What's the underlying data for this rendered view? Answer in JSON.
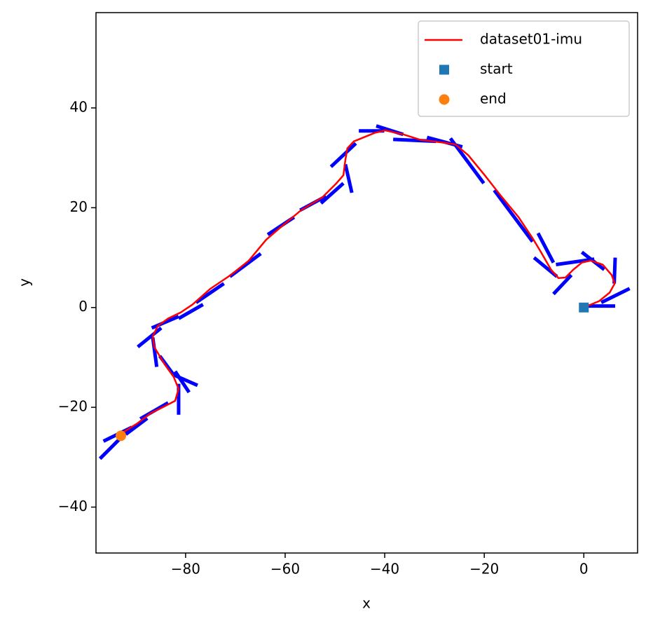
{
  "chart_data": {
    "type": "line",
    "xlabel": "x",
    "ylabel": "y",
    "xlim": [
      -98.0,
      10.8
    ],
    "ylim": [
      -49.2,
      59.1
    ],
    "xticks": [
      {
        "value": -80,
        "label": "−80"
      },
      {
        "value": -60,
        "label": "−60"
      },
      {
        "value": -40,
        "label": "−40"
      },
      {
        "value": -20,
        "label": "−20"
      },
      0
    ],
    "yticks": [
      {
        "value": -40,
        "label": "−40"
      },
      {
        "value": -20,
        "label": "−20"
      },
      0,
      20,
      40
    ],
    "legend": "upper right",
    "series": [
      {
        "name": "dataset01-imu",
        "kind": "line",
        "color": "#ff0000",
        "x": [
          0,
          3.1,
          5.2,
          6.2,
          5.6,
          3.8,
          1.4,
          -0.4,
          -2.1,
          -3.7,
          -5.1,
          -6.6,
          -8.6,
          -10.3,
          -13.1,
          -16.6,
          -19.9,
          -23.2,
          -25.8,
          -28.6,
          -32.8,
          -36.3,
          -39.9,
          -42.0,
          -46.2,
          -47.5,
          -47.9,
          -48.3,
          -49.7,
          -52.5,
          -56.8,
          -61.0,
          -63.8,
          -67.3,
          -70.8,
          -75.1,
          -78.6,
          -81.0,
          -83.5,
          -85.6,
          -86.6,
          -86.3,
          -84.2,
          -82.4,
          -81.4,
          -82.1,
          -84.2,
          -87.0,
          -89.8,
          -92.7,
          -93.0
        ],
        "values": [
          0,
          1.3,
          3.0,
          4.8,
          6.5,
          8.6,
          9.4,
          9.0,
          7.6,
          6.0,
          5.9,
          7.6,
          11.1,
          13.9,
          18.1,
          22.3,
          26.5,
          30.5,
          32.7,
          33.1,
          33.6,
          34.7,
          35.5,
          35.0,
          33.3,
          31.9,
          29.6,
          26.5,
          24.9,
          22.1,
          19.5,
          16.0,
          13.6,
          9.4,
          6.6,
          3.7,
          0.6,
          -1.0,
          -2.2,
          -3.7,
          -5.8,
          -7.9,
          -11.4,
          -13.9,
          -16.3,
          -18.7,
          -19.8,
          -21.2,
          -23.3,
          -25.1,
          -25.7
        ]
      },
      {
        "name": "start",
        "kind": "scatter",
        "marker": "square",
        "color": "#1f77b4",
        "x": [
          0
        ],
        "values": [
          0
        ]
      },
      {
        "name": "end",
        "kind": "scatter",
        "marker": "circle",
        "color": "#ff7f0e",
        "x": [
          -93.0
        ],
        "values": [
          -25.7
        ]
      }
    ],
    "headings": {
      "color": "#0000ff",
      "segments": [
        [
          0,
          0.3,
          6.3,
          0.3
        ],
        [
          3.5,
          1.0,
          9.2,
          3.8
        ],
        [
          6.3,
          10.0,
          6.1,
          4.8
        ],
        [
          -0.4,
          11.1,
          4.1,
          7.6
        ],
        [
          -5.6,
          8.6,
          2.1,
          9.7
        ],
        [
          -6.1,
          2.7,
          -2.5,
          6.5
        ],
        [
          -10.0,
          10.0,
          -5.4,
          6.2
        ],
        [
          -9.2,
          14.9,
          -6.1,
          9.0
        ],
        [
          -18.0,
          23.5,
          -10.3,
          13.2
        ],
        [
          -26.8,
          33.9,
          -20.1,
          24.9
        ],
        [
          -31.5,
          34.1,
          -24.4,
          32.2
        ],
        [
          -38.3,
          33.7,
          -29.7,
          33.3
        ],
        [
          -41.7,
          36.4,
          -36.3,
          34.7
        ],
        [
          -45.2,
          35.4,
          -40.1,
          35.4
        ],
        [
          -50.8,
          28.2,
          -45.8,
          32.9
        ],
        [
          -47.9,
          28.7,
          -46.6,
          23.0
        ],
        [
          -52.8,
          20.9,
          -48.3,
          24.9
        ],
        [
          -57.0,
          19.5,
          -51.8,
          22.3
        ],
        [
          -63.5,
          14.6,
          -58.2,
          18.1
        ],
        [
          -71.1,
          6.2,
          -64.9,
          10.8
        ],
        [
          -77.9,
          1.0,
          -72.3,
          4.8
        ],
        [
          -81.4,
          -2.2,
          -76.5,
          0.6
        ],
        [
          -86.8,
          -4.1,
          -81.4,
          -1.8
        ],
        [
          -89.6,
          -7.9,
          -84.9,
          -4.1
        ],
        [
          -86.6,
          -6.0,
          -85.8,
          -11.9
        ],
        [
          -85.2,
          -9.7,
          -82.4,
          -13.5
        ],
        [
          -82.4,
          -13.5,
          -77.6,
          -15.6
        ],
        [
          -82.1,
          -12.8,
          -79.3,
          -17.0
        ],
        [
          -81.4,
          -15.3,
          -81.4,
          -21.5
        ],
        [
          -89.1,
          -22.3,
          -83.5,
          -19.1
        ],
        [
          -92.0,
          -25.4,
          -87.7,
          -22.2
        ],
        [
          -96.5,
          -26.8,
          -90.8,
          -24.0
        ],
        [
          -97.2,
          -30.3,
          -92.0,
          -25.1
        ]
      ]
    }
  }
}
